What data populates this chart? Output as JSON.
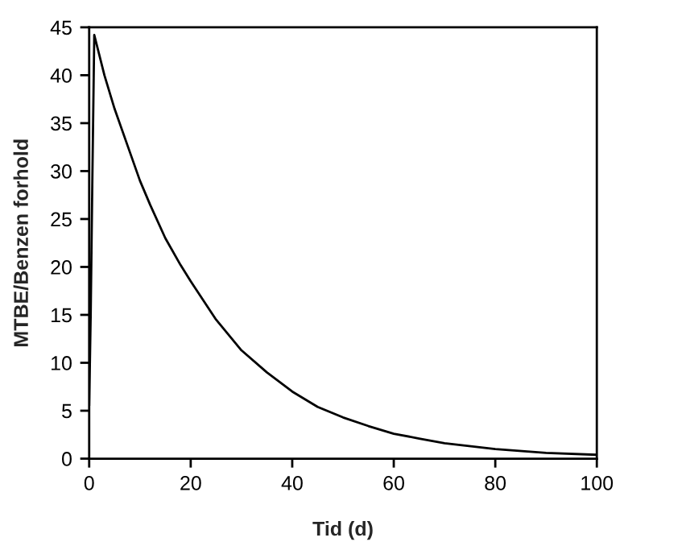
{
  "chart_data": {
    "type": "line",
    "xlabel": "Tid (d)",
    "ylabel": "MTBE/Benzen forhold",
    "x": [
      0,
      0.3,
      0.6,
      1,
      3,
      5,
      8,
      10,
      12,
      15,
      18,
      20,
      25,
      30,
      35,
      40,
      45,
      50,
      55,
      60,
      65,
      70,
      80,
      90,
      100
    ],
    "series": [
      {
        "color": "#000000",
        "values": [
          5.5,
          15,
          28,
          44.2,
          40,
          36.5,
          32,
          29,
          26.5,
          23,
          20.2,
          18.5,
          14.5,
          11.3,
          9,
          7,
          5.4,
          4.3,
          3.4,
          2.6,
          2.1,
          1.6,
          1.0,
          0.6,
          0.4
        ]
      }
    ],
    "xlim": [
      0,
      100
    ],
    "xticks": [
      0,
      20,
      40,
      60,
      80,
      100
    ],
    "ylim": [
      0,
      45
    ],
    "yticks": [
      0,
      5,
      10,
      15,
      20,
      25,
      30,
      35,
      40,
      45
    ],
    "marker": "none",
    "line_style": "solid"
  }
}
